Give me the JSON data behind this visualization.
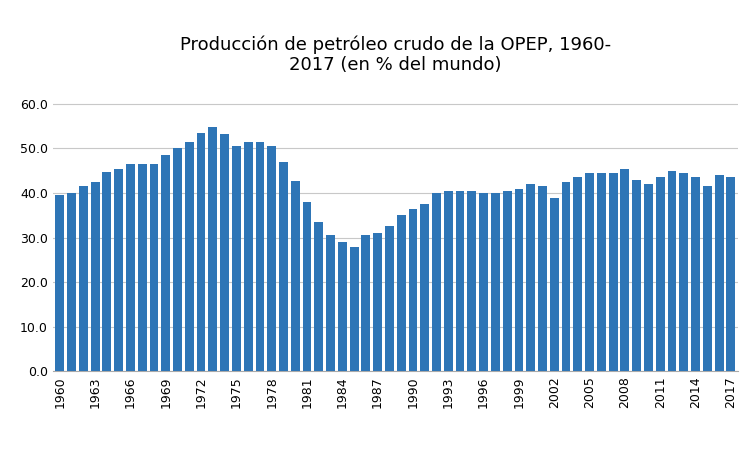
{
  "title": "Producción de petróleo crudo de la OPEP, 1960-\n2017 (en % del mundo)",
  "years": [
    1960,
    1961,
    1962,
    1963,
    1964,
    1965,
    1966,
    1967,
    1968,
    1969,
    1970,
    1971,
    1972,
    1973,
    1974,
    1975,
    1976,
    1977,
    1978,
    1979,
    1980,
    1981,
    1982,
    1983,
    1984,
    1985,
    1986,
    1987,
    1988,
    1989,
    1990,
    1991,
    1992,
    1993,
    1994,
    1995,
    1996,
    1997,
    1998,
    1999,
    2000,
    2001,
    2002,
    2003,
    2004,
    2005,
    2006,
    2007,
    2008,
    2009,
    2010,
    2011,
    2012,
    2013,
    2014,
    2015,
    2016,
    2017
  ],
  "values": [
    39.5,
    40.0,
    41.5,
    42.5,
    44.8,
    45.5,
    46.5,
    46.5,
    46.5,
    48.5,
    50.2,
    51.5,
    53.5,
    54.8,
    53.2,
    50.5,
    51.5,
    51.5,
    50.5,
    47.0,
    42.8,
    38.0,
    33.5,
    30.5,
    29.0,
    28.0,
    30.5,
    31.0,
    32.5,
    35.0,
    36.5,
    37.5,
    40.0,
    40.5,
    40.5,
    40.5,
    40.0,
    40.0,
    40.5,
    41.0,
    42.0,
    41.5,
    39.0,
    42.5,
    43.5,
    44.5,
    44.5,
    44.5,
    45.5,
    43.0,
    42.0,
    43.5,
    45.0,
    44.5,
    43.5,
    41.5,
    44.0,
    43.5
  ],
  "bar_color": "#2e75b6",
  "yticks": [
    0.0,
    10.0,
    20.0,
    30.0,
    40.0,
    50.0,
    60.0
  ],
  "xtick_years": [
    1960,
    1963,
    1966,
    1969,
    1972,
    1975,
    1978,
    1981,
    1984,
    1987,
    1990,
    1993,
    1996,
    1999,
    2002,
    2005,
    2008,
    2011,
    2014,
    2017
  ],
  "ylim": [
    0,
    65
  ],
  "title_fontsize": 13,
  "tick_fontsize": 9,
  "background_color": "#ffffff",
  "grid_color": "#c8c8c8"
}
